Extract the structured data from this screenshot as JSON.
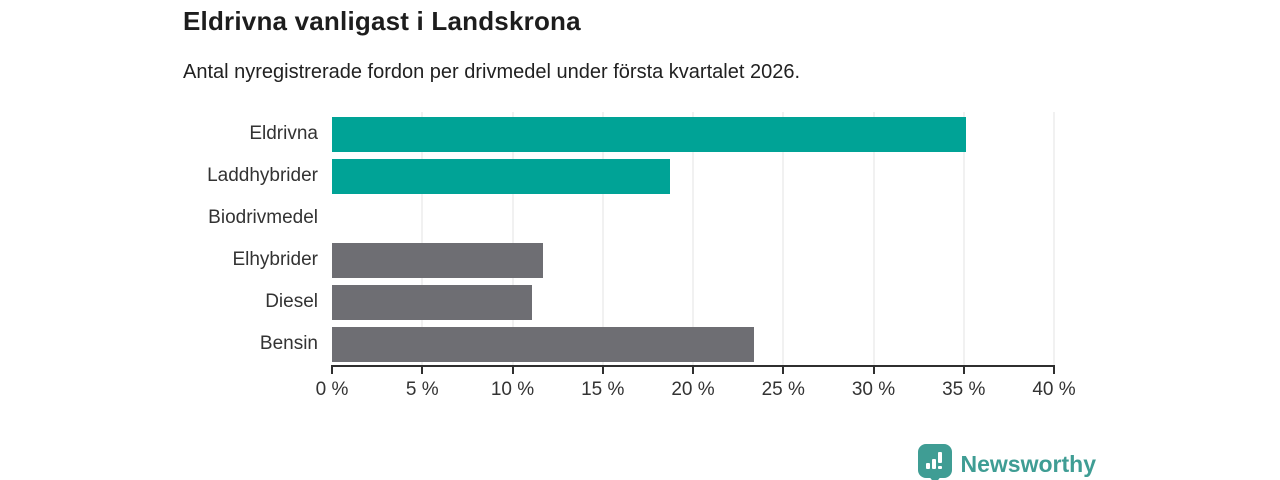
{
  "title": "Eldrivna vanligast i Landskrona",
  "subtitle": "Antal nyregistrerade fordon per drivmedel under första kvartalet 2026.",
  "colors": {
    "bar_teal": "#00a396",
    "bar_gray": "#6e6e73",
    "gridline": "#e3e3e3",
    "axis": "#2f2f2f",
    "logo_teal": "#3f9d94",
    "title_text": "#1d1d1d",
    "label_text": "#333333"
  },
  "chart_data": {
    "type": "bar",
    "orientation": "horizontal",
    "title": "Eldrivna vanligast i Landskrona",
    "subtitle": "Antal nyregistrerade fordon per drivmedel under första kvartalet 2026.",
    "categories": [
      "Eldrivna",
      "Laddhybrider",
      "Biodrivmedel",
      "Elhybrider",
      "Diesel",
      "Bensin"
    ],
    "values": [
      35.1,
      18.7,
      0,
      11.7,
      11.1,
      23.4
    ],
    "unit": "%",
    "bar_colors": [
      "#00a396",
      "#00a396",
      "#6e6e73",
      "#6e6e73",
      "#6e6e73",
      "#6e6e73"
    ],
    "xlim": [
      0,
      40
    ],
    "xticks": [
      0,
      5,
      10,
      15,
      20,
      25,
      30,
      35,
      40
    ],
    "xtick_labels": [
      "0 %",
      "5 %",
      "10 %",
      "15 %",
      "20 %",
      "25 %",
      "30 %",
      "35 %",
      "40 %"
    ],
    "grid": "vertical",
    "legend": "none"
  },
  "footer": {
    "brand": "Newsworthy",
    "logo_icon": "bar-chart-pin-icon"
  }
}
